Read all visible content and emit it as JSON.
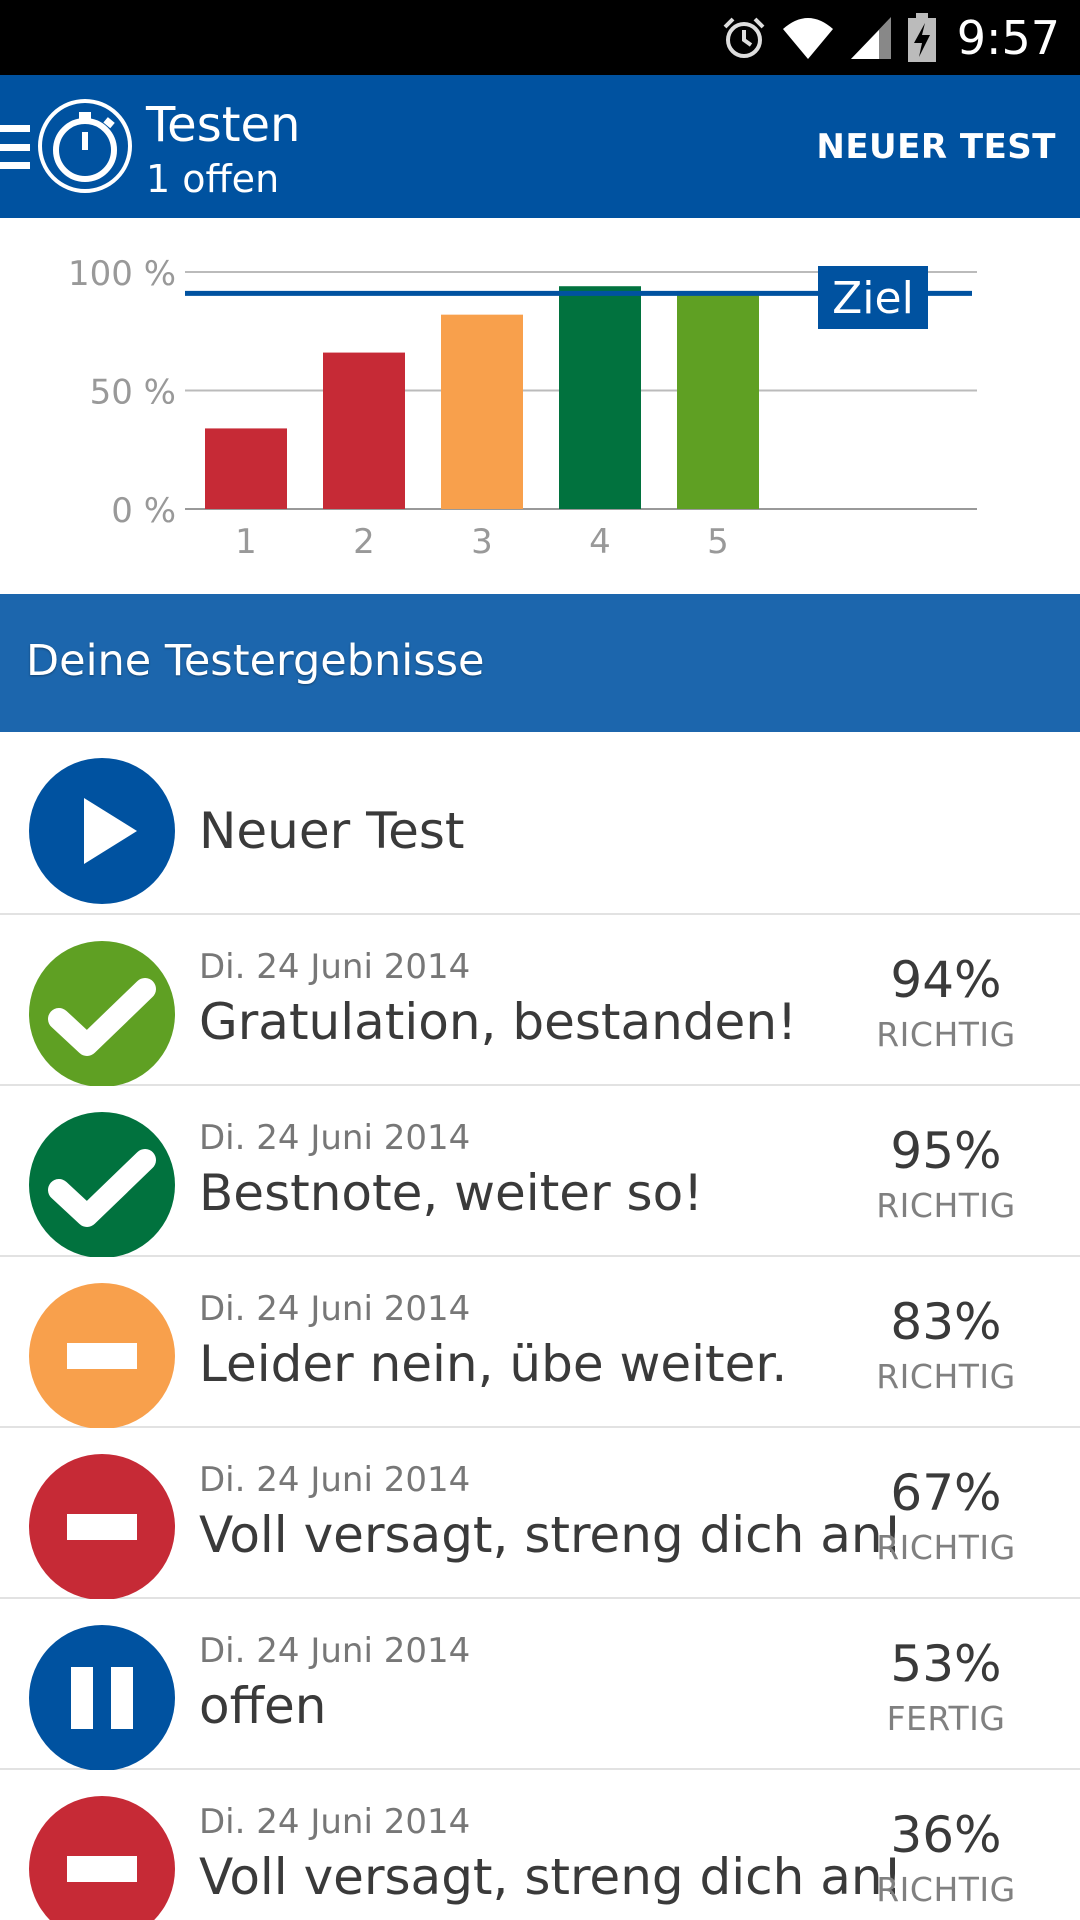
{
  "status_bar": {
    "time": "9:57",
    "icons": [
      "alarm-icon",
      "wifi-icon",
      "signal-icon",
      "battery-charging-icon"
    ]
  },
  "app_bar": {
    "title": "Testen",
    "subtitle": "1 offen",
    "action_label": "NEUER TEST",
    "icons": [
      "menu-icon",
      "stopwatch-icon"
    ]
  },
  "chart_data": {
    "type": "bar",
    "categories": [
      "1",
      "2",
      "3",
      "4",
      "5"
    ],
    "values": [
      34,
      66,
      82,
      94,
      92
    ],
    "colors": [
      "#c62a36",
      "#c62a36",
      "#f8a04c",
      "#01723e",
      "#5fa023"
    ],
    "y_ticks": [
      "0 %",
      "50 %",
      "100 %"
    ],
    "ylim": [
      0,
      100
    ],
    "target": {
      "label": "Ziel",
      "value": 91,
      "color": "#0052a0"
    },
    "grid": true
  },
  "section": {
    "title": "Deine Testergebnisse"
  },
  "list": {
    "new_test": {
      "label": "Neuer Test",
      "icon": "play-icon",
      "color": "#0052a0"
    },
    "results": [
      {
        "date": "Di. 24 Juni 2014",
        "message": "Gratulation, bestanden!",
        "percent": "94%",
        "unit": "RICHTIG",
        "icon": "check-icon",
        "color": "#5fa023"
      },
      {
        "date": "Di. 24 Juni 2014",
        "message": "Bestnote, weiter so!",
        "percent": "95%",
        "unit": "RICHTIG",
        "icon": "check-icon",
        "color": "#01723e"
      },
      {
        "date": "Di. 24 Juni 2014",
        "message": "Leider nein, übe weiter.",
        "percent": "83%",
        "unit": "RICHTIG",
        "icon": "minus-icon",
        "color": "#f8a04c"
      },
      {
        "date": "Di. 24 Juni 2014",
        "message": "Voll versagt, streng dich an!",
        "percent": "67%",
        "unit": "RICHTIG",
        "icon": "minus-icon",
        "color": "#c62a36"
      },
      {
        "date": "Di. 24 Juni 2014",
        "message": "offen",
        "percent": "53%",
        "unit": "FERTIG",
        "icon": "pause-icon",
        "color": "#0052a0"
      },
      {
        "date": "Di. 24 Juni 2014",
        "message": "Voll versagt, streng dich an!",
        "percent": "36%",
        "unit": "RICHTIG",
        "icon": "minus-icon",
        "color": "#c62a36"
      }
    ]
  }
}
